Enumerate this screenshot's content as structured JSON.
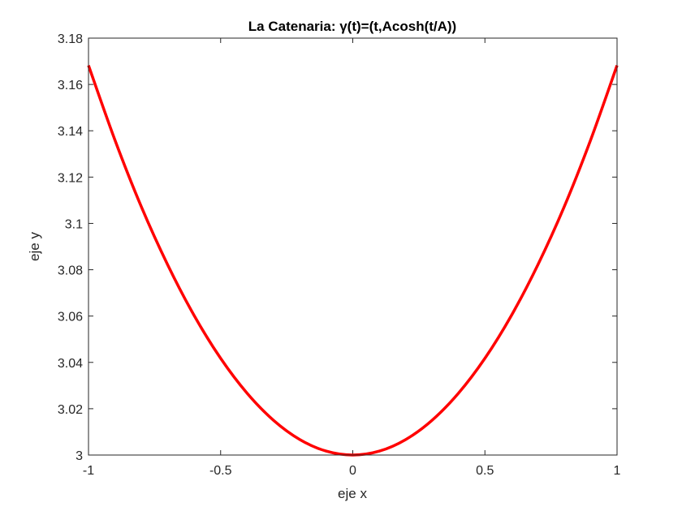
{
  "chart_data": {
    "type": "line",
    "title": "La Catenaria: γ(t)=(t,Acosh(t/A))",
    "xlabel": "eje x",
    "ylabel": "eje y",
    "xlim": [
      -1,
      1
    ],
    "ylim": [
      3,
      3.18
    ],
    "xticks": [
      "-1",
      "-0.5",
      "0",
      "0.5",
      "1"
    ],
    "yticks": [
      "3",
      "3.02",
      "3.04",
      "3.06",
      "3.08",
      "3.1",
      "3.12",
      "3.14",
      "3.16",
      "3.18"
    ],
    "grid": false,
    "series": [
      {
        "color": "#ff0000",
        "x": [
          -1,
          -0.9,
          -0.8,
          -0.7,
          -0.6,
          -0.5,
          -0.4,
          -0.3,
          -0.2,
          -0.1,
          0,
          0.1,
          0.2,
          0.3,
          0.4,
          0.5,
          0.6,
          0.7,
          0.8,
          0.9,
          1
        ],
        "y": [
          3.16822,
          3.13602,
          3.10719,
          3.08205,
          3.0602,
          3.04175,
          3.0267,
          3.01501,
          3.00667,
          3.00167,
          3,
          3.00167,
          3.00667,
          3.01501,
          3.0267,
          3.04175,
          3.0602,
          3.08205,
          3.10719,
          3.13602,
          3.16822
        ]
      }
    ]
  }
}
